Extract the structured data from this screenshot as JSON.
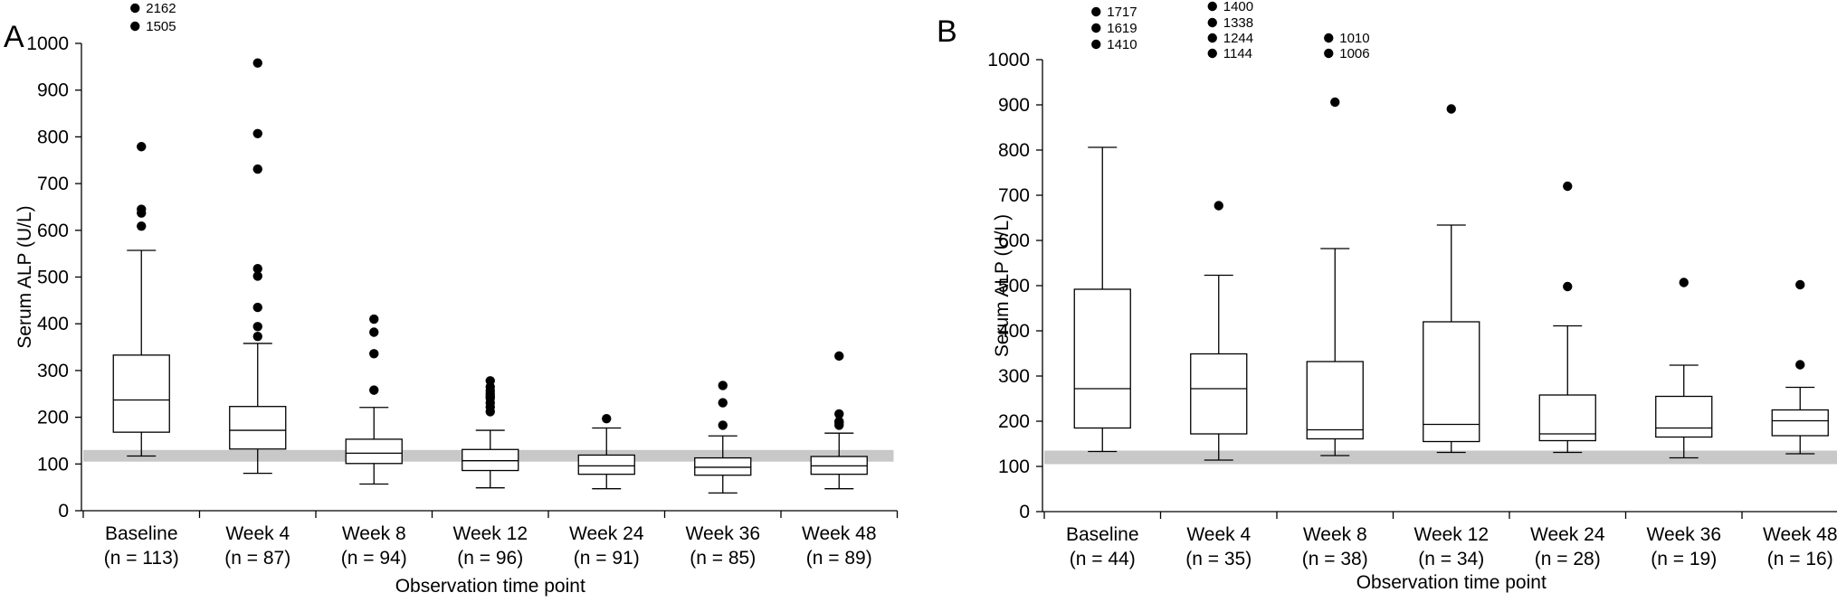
{
  "chart_data": [
    {
      "type": "box",
      "panel_label": "A",
      "xlabel": "Observation time point",
      "ylabel": "Serum ALP (U/L)",
      "ylim": [
        0,
        1000
      ],
      "yticks": [
        "0",
        "100",
        "200",
        "300",
        "400",
        "500",
        "600",
        "700",
        "800",
        "900",
        "1000"
      ],
      "reference_band": [
        105,
        130
      ],
      "categories": [
        {
          "name": "Baseline",
          "n": "(n = 113)"
        },
        {
          "name": "Week 4",
          "n": "(n = 87)"
        },
        {
          "name": "Week 8",
          "n": "(n = 94)"
        },
        {
          "name": "Week 12",
          "n": "(n = 96)"
        },
        {
          "name": "Week 24",
          "n": "(n = 91)"
        },
        {
          "name": "Week 36",
          "n": "(n = 85)"
        },
        {
          "name": "Week 48",
          "n": "(n = 89)"
        }
      ],
      "boxes": [
        {
          "whisker_low": 117,
          "q1": 168,
          "median": 237,
          "q3": 333,
          "whisker_high": 557,
          "outliers": [
            609,
            637,
            645,
            779
          ]
        },
        {
          "whisker_low": 80,
          "q1": 132,
          "median": 172,
          "q3": 223,
          "whisker_high": 358,
          "outliers": [
            373,
            394,
            435,
            502,
            518,
            731,
            807,
            958
          ]
        },
        {
          "whisker_low": 57,
          "q1": 101,
          "median": 123,
          "q3": 153,
          "whisker_high": 221,
          "outliers": [
            258,
            336,
            382,
            410
          ]
        },
        {
          "whisker_low": 49,
          "q1": 86,
          "median": 107,
          "q3": 131,
          "whisker_high": 172,
          "outliers": [
            212,
            222,
            231,
            241,
            245,
            251,
            257,
            265,
            278
          ]
        },
        {
          "whisker_low": 47,
          "q1": 78,
          "median": 96,
          "q3": 119,
          "whisker_high": 177,
          "outliers": [
            197
          ]
        },
        {
          "whisker_low": 38,
          "q1": 76,
          "median": 93,
          "q3": 113,
          "whisker_high": 160,
          "outliers": [
            183,
            231,
            268
          ]
        },
        {
          "whisker_low": 47,
          "q1": 78,
          "median": 96,
          "q3": 116,
          "whisker_high": 166,
          "outliers": [
            183,
            188,
            191,
            207,
            331
          ]
        }
      ],
      "offscale_outliers": [
        {
          "category": "Baseline",
          "labels": [
            "2162",
            "1505"
          ]
        }
      ]
    },
    {
      "type": "box",
      "panel_label": "B",
      "xlabel": "Observation time point",
      "ylabel": "Serum ALP (U/L)",
      "ylim": [
        0,
        1000
      ],
      "yticks": [
        "0",
        "100",
        "200",
        "300",
        "400",
        "500",
        "600",
        "700",
        "800",
        "900",
        "1000"
      ],
      "reference_band": [
        105,
        135
      ],
      "categories": [
        {
          "name": "Baseline",
          "n": "(n = 44)"
        },
        {
          "name": "Week 4",
          "n": "(n = 35)"
        },
        {
          "name": "Week 8",
          "n": "(n = 38)"
        },
        {
          "name": "Week 12",
          "n": "(n = 34)"
        },
        {
          "name": "Week 24",
          "n": "(n = 28)"
        },
        {
          "name": "Week 36",
          "n": "(n = 19)"
        },
        {
          "name": "Week 48",
          "n": "(n = 16)"
        }
      ],
      "boxes": [
        {
          "whisker_low": 133,
          "q1": 185,
          "median": 272,
          "q3": 492,
          "whisker_high": 806,
          "outliers": []
        },
        {
          "whisker_low": 114,
          "q1": 172,
          "median": 272,
          "q3": 349,
          "whisker_high": 523,
          "outliers": [
            677
          ]
        },
        {
          "whisker_low": 124,
          "q1": 161,
          "median": 181,
          "q3": 332,
          "whisker_high": 582,
          "outliers": [
            906
          ]
        },
        {
          "whisker_low": 131,
          "q1": 155,
          "median": 193,
          "q3": 420,
          "whisker_high": 634,
          "outliers": [
            891
          ]
        },
        {
          "whisker_low": 131,
          "q1": 157,
          "median": 172,
          "q3": 258,
          "whisker_high": 411,
          "outliers": [
            498,
            720
          ]
        },
        {
          "whisker_low": 119,
          "q1": 165,
          "median": 185,
          "q3": 255,
          "whisker_high": 324,
          "outliers": [
            507
          ]
        },
        {
          "whisker_low": 128,
          "q1": 168,
          "median": 201,
          "q3": 225,
          "whisker_high": 275,
          "outliers": [
            325,
            502
          ]
        }
      ],
      "offscale_outliers": [
        {
          "category": "Baseline",
          "labels": [
            "1717",
            "1619",
            "1410"
          ]
        },
        {
          "category": "Week 4",
          "labels": [
            "1400",
            "1338",
            "1244",
            "1144"
          ]
        },
        {
          "category": "Week 8",
          "labels": [
            "1010",
            "1006"
          ]
        }
      ]
    }
  ]
}
